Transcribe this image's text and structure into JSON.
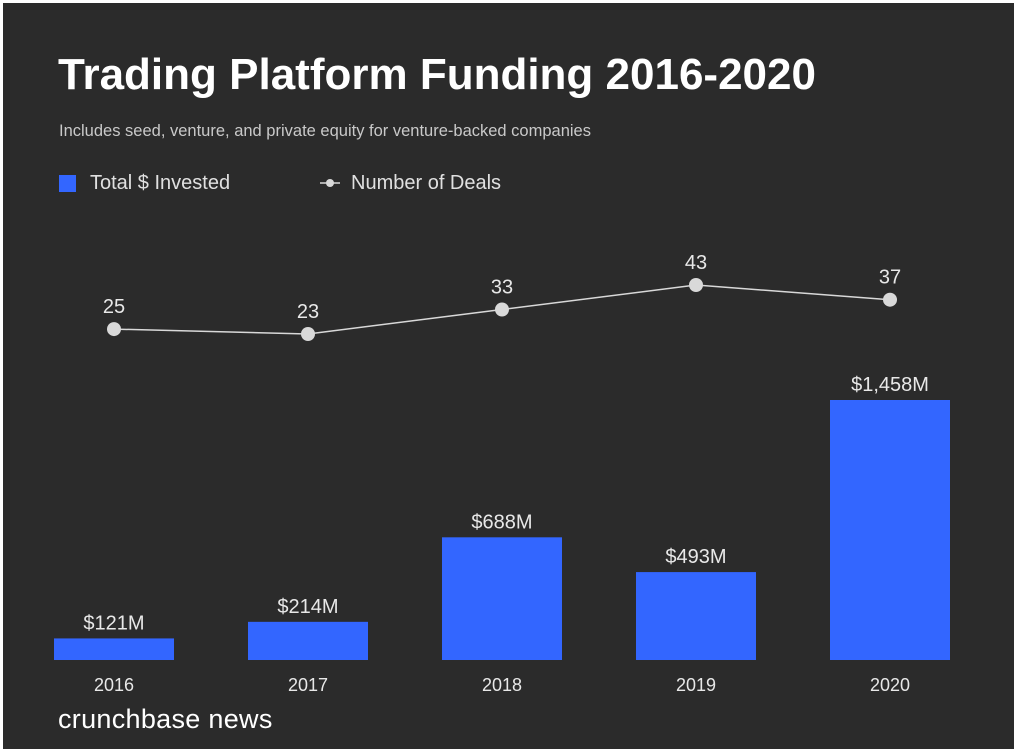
{
  "title": "Trading Platform Funding 2016-2020",
  "subtitle": "Includes seed, venture, and private equity for venture-backed companies",
  "legend": {
    "bar_label": "Total $ Invested",
    "line_label": "Number of Deals"
  },
  "brand": "crunchbase news",
  "colors": {
    "background": "#2b2b2b",
    "bar": "#3366ff",
    "line": "#d9d9d9",
    "text": "#e8e8e8"
  },
  "chart_data": {
    "type": "bar",
    "categories": [
      "2016",
      "2017",
      "2018",
      "2019",
      "2020"
    ],
    "series": [
      {
        "name": "Total $ Invested",
        "type": "bar",
        "unit": "$M",
        "values": [
          121,
          214,
          688,
          493,
          1458
        ],
        "labels": [
          "$121M",
          "$214M",
          "$688M",
          "$493M",
          "$1,458M"
        ]
      },
      {
        "name": "Number of Deals",
        "type": "line",
        "values": [
          25,
          23,
          33,
          43,
          37
        ],
        "labels": [
          "25",
          "23",
          "33",
          "43",
          "37"
        ]
      }
    ],
    "legend_position": "top-left",
    "grid": false,
    "axes_visible": false
  }
}
